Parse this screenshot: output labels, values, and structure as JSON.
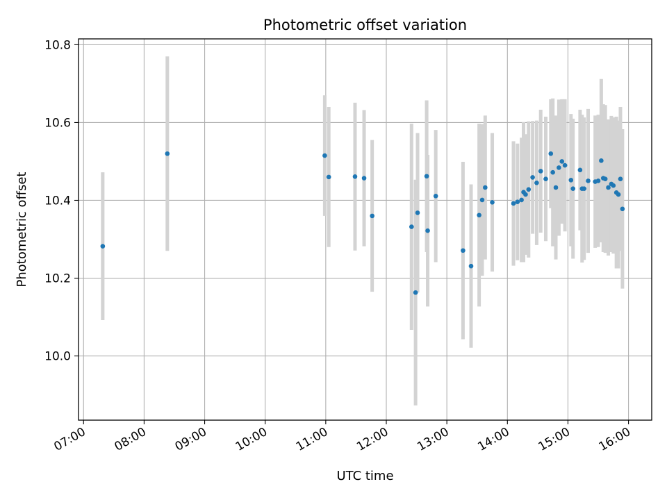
{
  "chart_data": {
    "type": "scatter",
    "title": "Photometric offset variation",
    "xlabel": "UTC time",
    "ylabel": "Photometric offset",
    "xlim": [
      "06:55",
      "16:23"
    ],
    "ylim": [
      9.835,
      10.815
    ],
    "x_ticks": [
      "07:00",
      "08:00",
      "09:00",
      "10:00",
      "11:00",
      "12:00",
      "13:00",
      "14:00",
      "15:00",
      "16:00"
    ],
    "y_ticks": [
      10.0,
      10.2,
      10.4,
      10.6,
      10.8
    ],
    "y_tick_labels": [
      "10.0",
      "10.2",
      "10.4",
      "10.6",
      "10.8"
    ],
    "grid": true,
    "legend": "none",
    "colors": {
      "points": "#1f77b4",
      "error_bars": "#d3d3d3",
      "grid": "#b0b0b0",
      "axes": "#000000"
    },
    "series": [
      {
        "x": [
          "07:19",
          "08:23",
          "10:59",
          "11:03",
          "11:29",
          "11:38",
          "11:46",
          "12:25",
          "12:29",
          "12:31",
          "12:40",
          "12:41",
          "12:49",
          "13:16",
          "13:24",
          "13:32",
          "13:35",
          "13:38",
          "13:45",
          "14:06",
          "14:10",
          "14:14",
          "14:16",
          "14:18",
          "14:21",
          "14:25",
          "14:29",
          "14:33",
          "14:38",
          "14:43",
          "14:45",
          "14:48",
          "14:51",
          "14:54",
          "14:57",
          "15:03",
          "15:05",
          "15:12",
          "15:14",
          "15:16",
          "15:20",
          "15:27",
          "15:30",
          "15:33",
          "15:35",
          "15:37",
          "15:40",
          "15:43",
          "15:45",
          "15:48",
          "15:50",
          "15:52",
          "15:54"
        ],
        "y": [
          10.282,
          10.52,
          10.515,
          10.46,
          10.461,
          10.457,
          10.36,
          10.332,
          10.163,
          10.368,
          10.462,
          10.322,
          10.411,
          10.271,
          10.231,
          10.362,
          10.401,
          10.433,
          10.395,
          10.392,
          10.396,
          10.401,
          10.421,
          10.415,
          10.428,
          10.459,
          10.445,
          10.475,
          10.455,
          10.52,
          10.472,
          10.433,
          10.484,
          10.5,
          10.49,
          10.452,
          10.43,
          10.478,
          10.43,
          10.43,
          10.45,
          10.448,
          10.45,
          10.502,
          10.457,
          10.455,
          10.433,
          10.442,
          10.438,
          10.42,
          10.415,
          10.455,
          10.378
        ],
        "err": [
          0.19,
          0.25,
          0.155,
          0.18,
          0.19,
          0.175,
          0.195,
          0.265,
          0.29,
          0.205,
          0.195,
          0.195,
          0.17,
          0.228,
          0.21,
          0.235,
          0.195,
          0.185,
          0.178,
          0.16,
          0.15,
          0.16,
          0.18,
          0.155,
          0.175,
          0.145,
          0.16,
          0.158,
          0.16,
          0.14,
          0.19,
          0.185,
          0.175,
          0.16,
          0.17,
          0.17,
          0.18,
          0.155,
          0.19,
          0.183,
          0.185,
          0.17,
          0.17,
          0.21,
          0.19,
          0.19,
          0.175,
          0.175,
          0.175,
          0.195,
          0.19,
          0.185,
          0.205
        ]
      }
    ]
  }
}
